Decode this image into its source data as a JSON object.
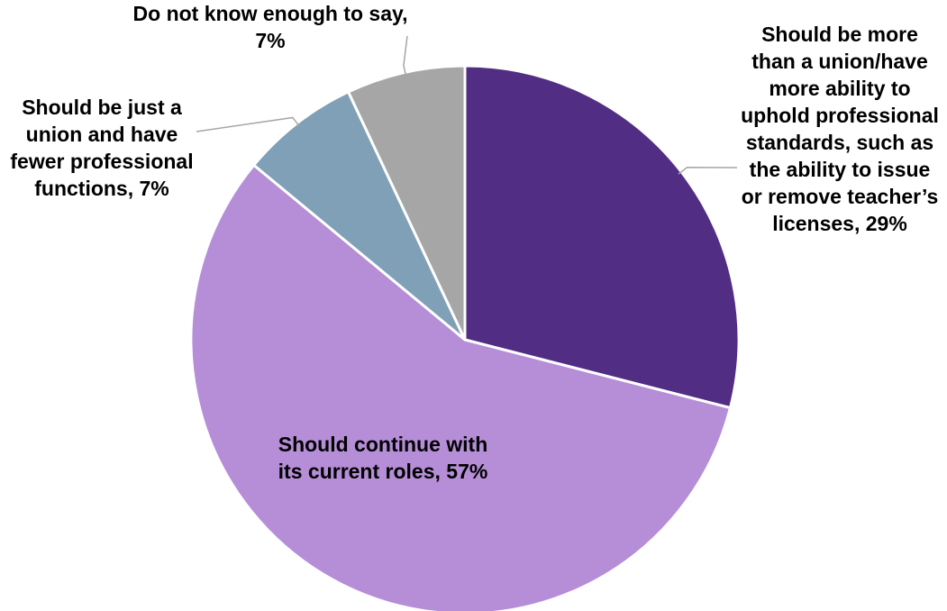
{
  "chart_data": {
    "type": "pie",
    "start_angle_deg": 0,
    "direction": "clockwise",
    "slices": [
      {
        "label": "Should be more than a union/have more ability to uphold professional standards, such as the ability to issue or remove teacher’s licenses",
        "value": 29,
        "value_label": "29%",
        "color": "#522d84"
      },
      {
        "label": "Should continue with its current roles",
        "value": 57,
        "value_label": "57%",
        "color": "#b68ed8"
      },
      {
        "label": "Should be just a union and have fewer professional functions",
        "value": 7,
        "value_label": "7%",
        "color": "#7fa0b7"
      },
      {
        "label": "Do not know enough to say",
        "value": 7,
        "value_label": "7%",
        "color": "#a6a6a6"
      }
    ],
    "labels": [
      "Should be more than a union/have more ability to uphold professional standards, such as the ability to issue or remove teacher’s licenses, 29%",
      "Should continue with its current roles, 57%",
      "Should be just a union and have fewer professional functions, 7%",
      "Do not know enough to say, 7%"
    ]
  }
}
